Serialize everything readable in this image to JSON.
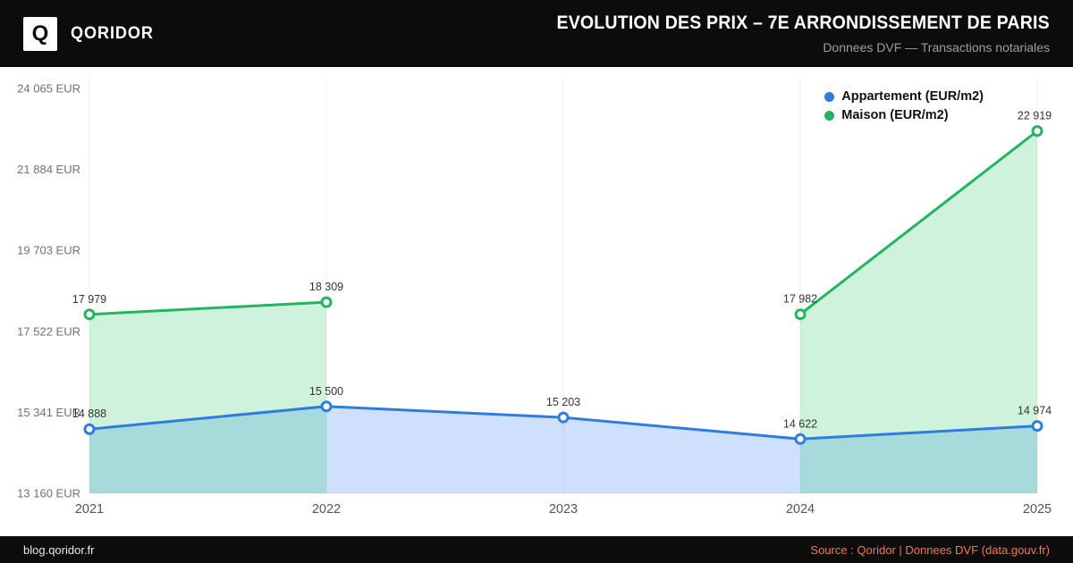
{
  "header": {
    "logo_letter": "Q",
    "brand": "QORIDOR",
    "title": "EVOLUTION DES PRIX – 7E ARRONDISSEMENT DE PARIS",
    "subtitle": "Donnees DVF — Transactions notariales"
  },
  "footer": {
    "left": "blog.qoridor.fr",
    "right": "Source : Qoridor | Donnees DVF (data.gouv.fr)"
  },
  "colors": {
    "header_bg": "#0c0c0c",
    "accent_orange": "#ff7455",
    "grid": "#ececec",
    "axis_text": "#6b7280",
    "data_label_text": "#333333"
  },
  "chart_data": {
    "type": "line",
    "categories": [
      "2021",
      "2022",
      "2023",
      "2024",
      "2025"
    ],
    "series": [
      {
        "name": "Appartement (EUR/m2)",
        "color": "#2e7ce0",
        "fill": "rgba(59,130,246,0.25)",
        "values": [
          14888,
          15500,
          15203,
          14622,
          14974
        ]
      },
      {
        "name": "Maison (EUR/m2)",
        "color": "#22b45e",
        "fill": "rgba(34,197,94,0.22)",
        "values": [
          17979,
          18309,
          null,
          17982,
          22919
        ]
      }
    ],
    "ylim": [
      13160,
      24065
    ],
    "yticks": [
      24065,
      21884,
      19703,
      17522,
      15341,
      13160
    ],
    "ytick_suffix": " EUR",
    "legend_position": "top-right",
    "grid": "vertical",
    "markers": "open-circle",
    "data_labels": true
  }
}
